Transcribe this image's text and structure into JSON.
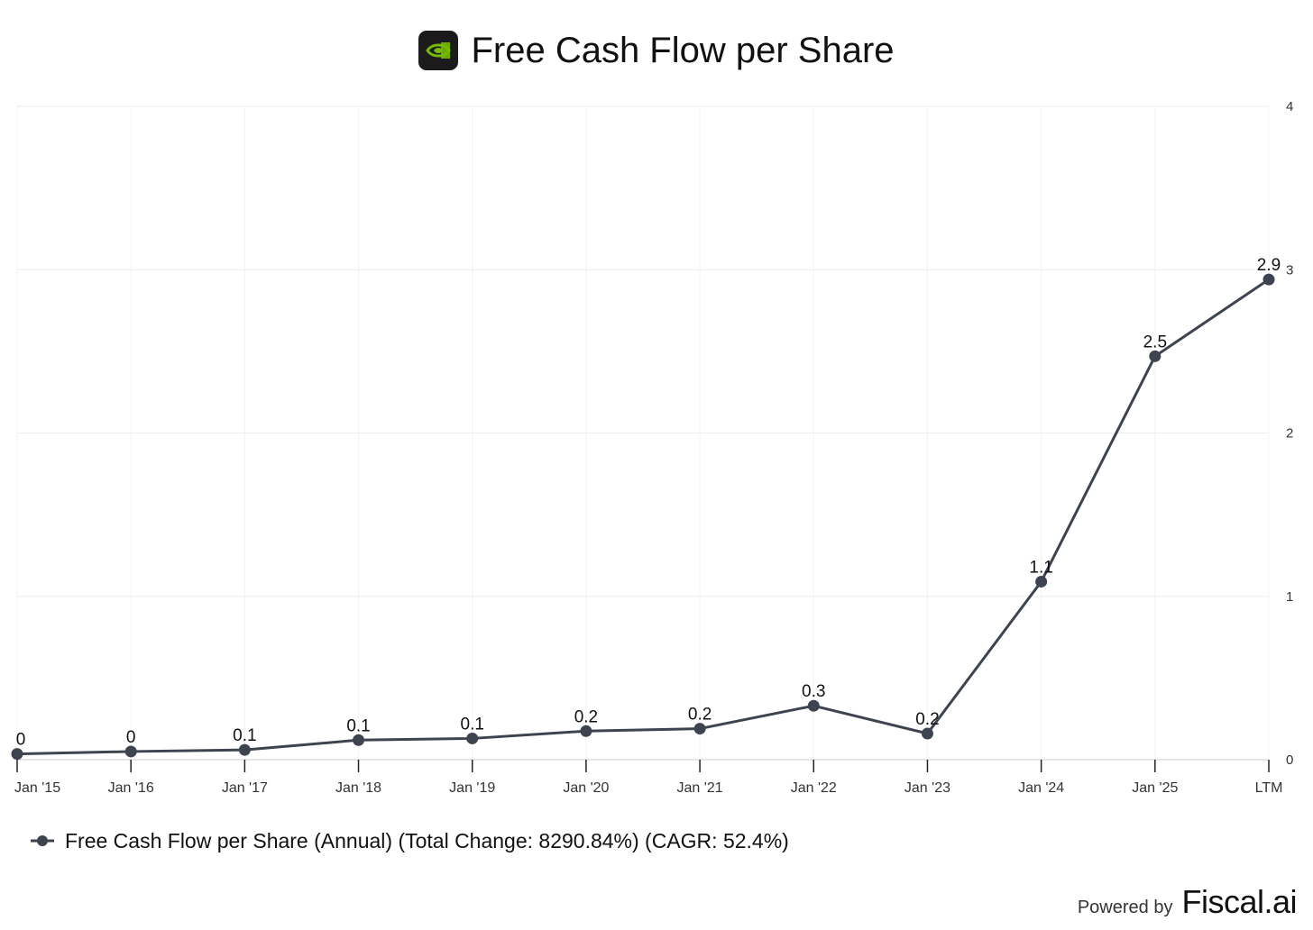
{
  "header": {
    "title": "Free Cash Flow per Share",
    "logo_icon": "nvidia-eye-icon"
  },
  "legend": {
    "label": "Free Cash Flow per Share (Annual) (Total Change: 8290.84%) (CAGR: 52.4%)"
  },
  "footer": {
    "powered_by": "Powered by",
    "brand": "Fiscal.ai"
  },
  "chart_data": {
    "type": "line",
    "title": "Free Cash Flow per Share",
    "categories": [
      "Jan '15",
      "Jan '16",
      "Jan '17",
      "Jan '18",
      "Jan '19",
      "Jan '20",
      "Jan '21",
      "Jan '22",
      "Jan '23",
      "Jan '24",
      "Jan '25",
      "LTM"
    ],
    "series": [
      {
        "name": "Free Cash Flow per Share (Annual)",
        "values": [
          0.035,
          0.05,
          0.06,
          0.12,
          0.13,
          0.175,
          0.19,
          0.33,
          0.16,
          1.09,
          2.47,
          2.94
        ],
        "labels": [
          "0",
          "0",
          "0.1",
          "0.1",
          "0.1",
          "0.2",
          "0.2",
          "0.3",
          "0.2",
          "1.1",
          "2.5",
          "2.9"
        ],
        "color": "#3d4450"
      }
    ],
    "ylim": [
      0,
      4
    ],
    "yticks": [
      "0",
      "1",
      "2",
      "3",
      "4"
    ],
    "y_axis_side": "right",
    "grid": true,
    "legend_position": "bottom-left"
  }
}
